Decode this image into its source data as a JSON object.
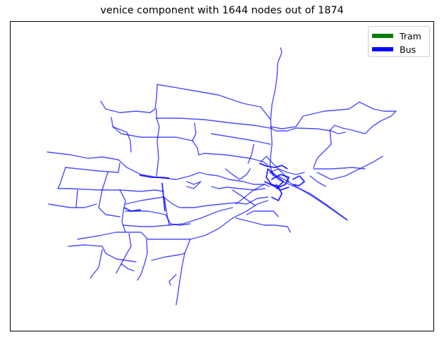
{
  "figure": {
    "title": "venice component with 1644 nodes out of 1874"
  },
  "legend": {
    "items": [
      {
        "label": "Tram",
        "color": "#008000"
      },
      {
        "label": "Bus",
        "color": "#0000ff"
      }
    ]
  },
  "network": {
    "edge_color": "#0000ff",
    "edge_opacity": 0.65
  }
}
